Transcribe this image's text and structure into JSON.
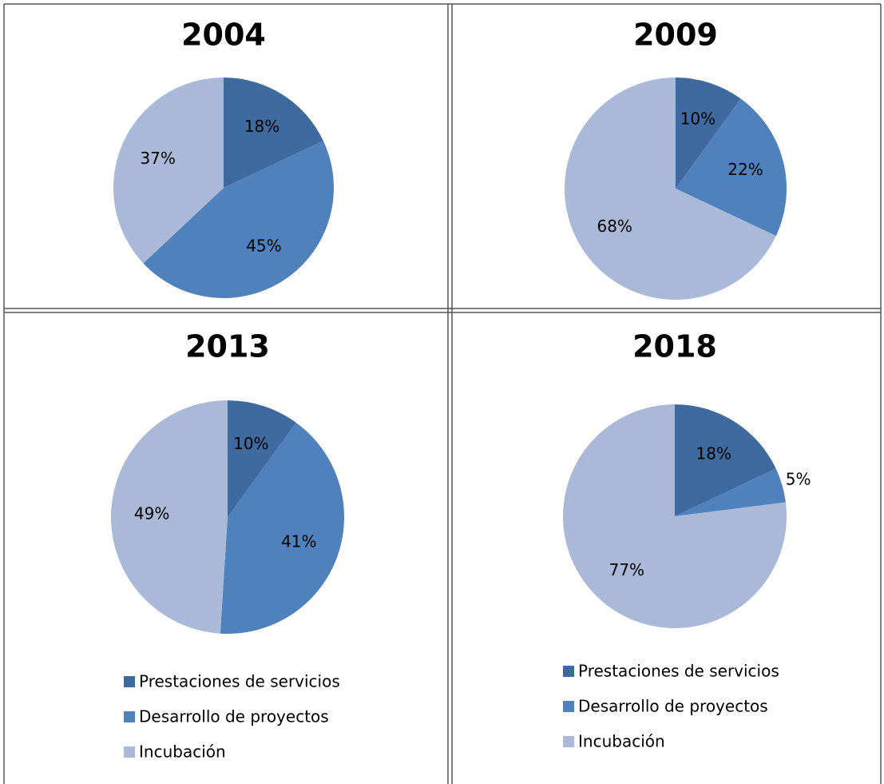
{
  "chart_data": [
    {
      "type": "pie",
      "title": "2004",
      "values": [
        18,
        45,
        37
      ],
      "value_labels": [
        "18%",
        "45%",
        "37%"
      ],
      "colors": [
        "#3f6a9f",
        "#4f81bd",
        "#aab9d8"
      ]
    },
    {
      "type": "pie",
      "title": "2009",
      "values": [
        10,
        22,
        68
      ],
      "value_labels": [
        "10%",
        "22%",
        "68%"
      ],
      "colors": [
        "#3f6a9f",
        "#4f81bd",
        "#aab9d8"
      ]
    },
    {
      "type": "pie",
      "title": "2013",
      "categories": [
        "Prestaciones de servicios",
        "Desarrollo de proyectos",
        "Incubación"
      ],
      "values": [
        10,
        41,
        49
      ],
      "value_labels": [
        "10%",
        "41%",
        "49%"
      ],
      "colors": [
        "#3f6a9f",
        "#4f81bd",
        "#aab9d8"
      ],
      "legend": "bottom"
    },
    {
      "type": "pie",
      "title": "2018",
      "categories": [
        "Prestaciones de servicios",
        "Desarrollo de proyectos",
        "Incubación"
      ],
      "values": [
        18,
        5,
        77
      ],
      "value_labels": [
        "18%",
        "5%",
        "77%"
      ],
      "colors": [
        "#3f6a9f",
        "#4f81bd",
        "#aab9d8"
      ],
      "legend": "bottom"
    }
  ]
}
